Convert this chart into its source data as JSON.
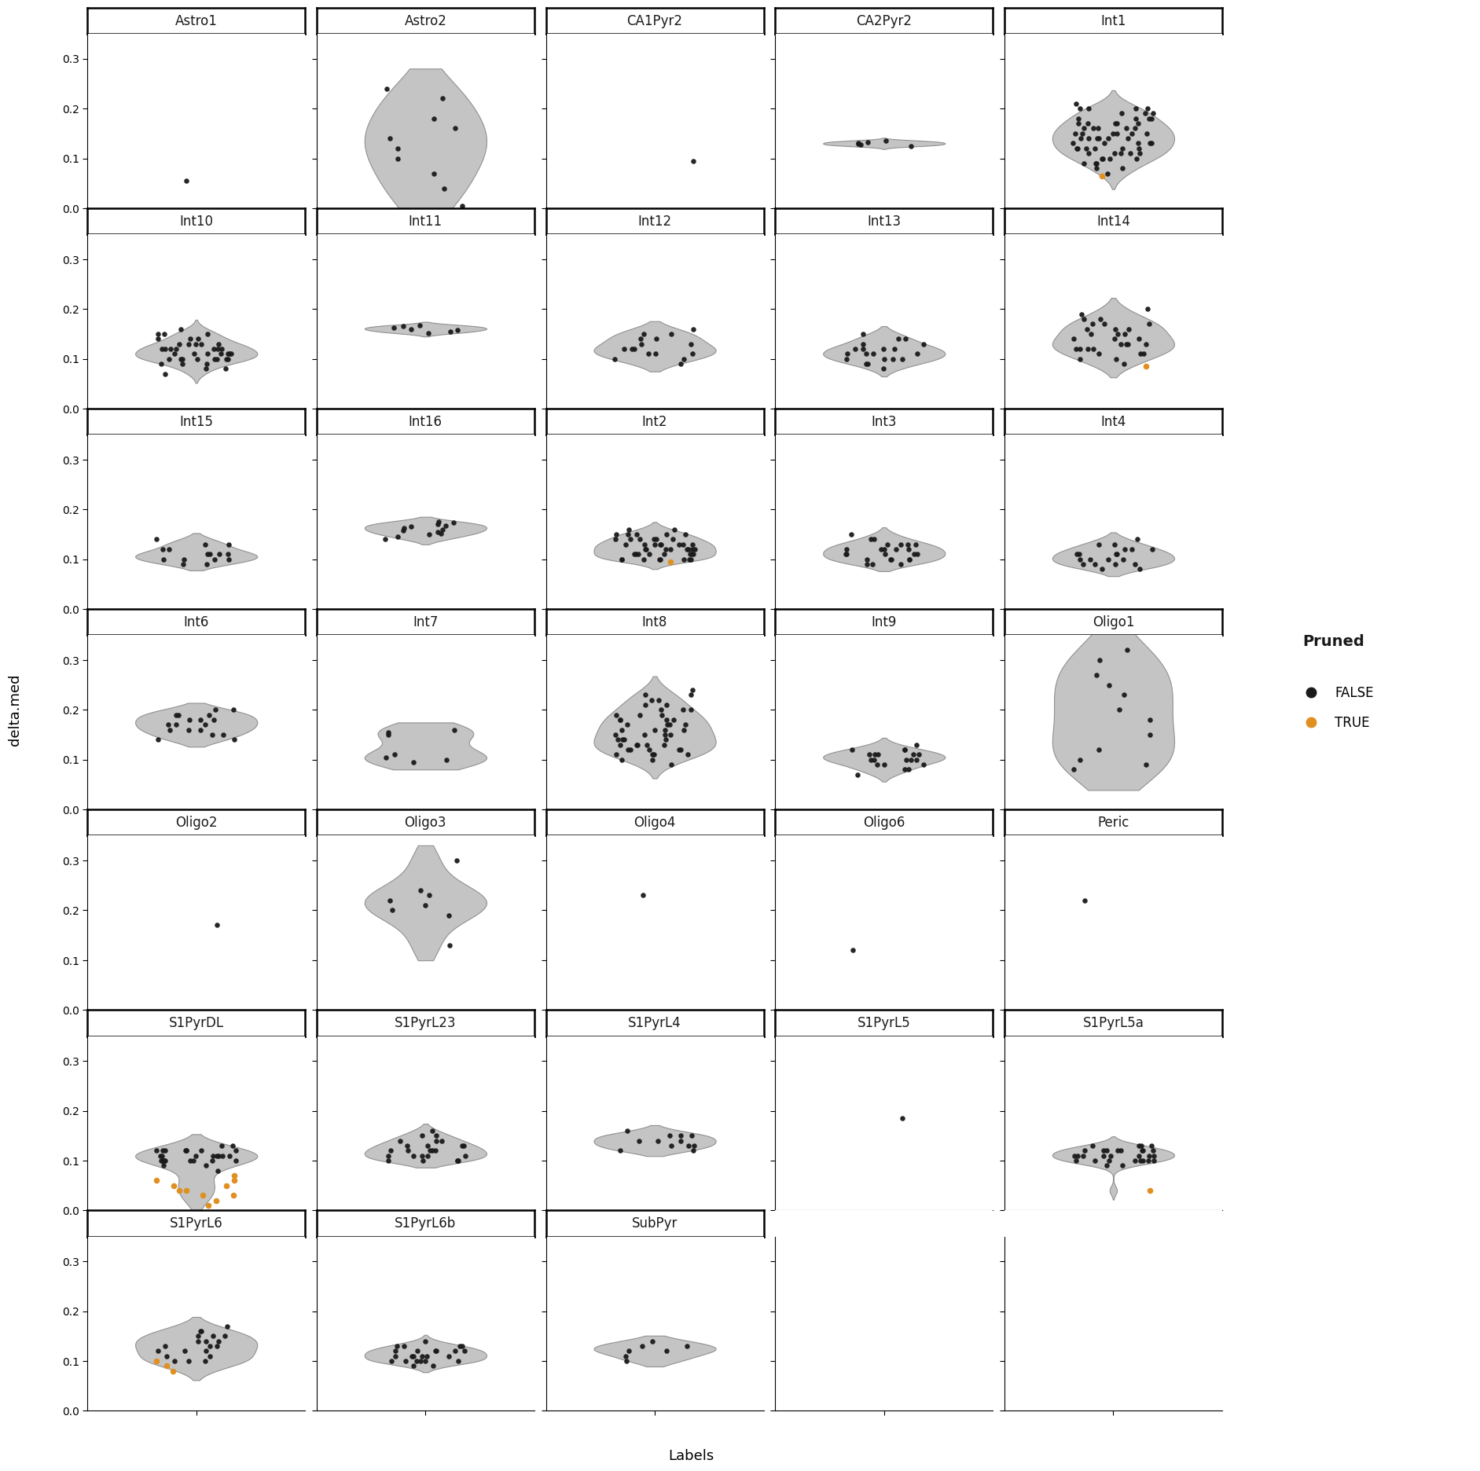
{
  "panels": [
    {
      "name": "Astro1",
      "row": 0,
      "col": 0,
      "false_vals": [
        0.055
      ],
      "true_vals": [],
      "violin": false
    },
    {
      "name": "Astro2",
      "row": 0,
      "col": 1,
      "false_vals": [
        0.005,
        0.04,
        0.07,
        0.1,
        0.12,
        0.14,
        0.16,
        0.18,
        0.22,
        0.24
      ],
      "true_vals": [],
      "violin": true
    },
    {
      "name": "CA1Pyr2",
      "row": 0,
      "col": 2,
      "false_vals": [
        0.095
      ],
      "true_vals": [],
      "violin": false
    },
    {
      "name": "CA2Pyr2",
      "row": 0,
      "col": 3,
      "false_vals": [
        0.125,
        0.127,
        0.129,
        0.131,
        0.133,
        0.135
      ],
      "true_vals": [],
      "violin": true
    },
    {
      "name": "Int1",
      "row": 0,
      "col": 4,
      "false_vals": [
        0.07,
        0.08,
        0.08,
        0.09,
        0.09,
        0.1,
        0.1,
        0.1,
        0.11,
        0.11,
        0.11,
        0.12,
        0.12,
        0.12,
        0.12,
        0.13,
        0.13,
        0.13,
        0.14,
        0.14,
        0.14,
        0.14,
        0.15,
        0.15,
        0.15,
        0.15,
        0.16,
        0.16,
        0.16,
        0.17,
        0.17,
        0.17,
        0.18,
        0.18,
        0.18,
        0.19,
        0.19,
        0.2,
        0.2,
        0.2,
        0.21,
        0.14,
        0.13,
        0.12,
        0.11,
        0.1,
        0.09,
        0.15,
        0.16,
        0.17,
        0.18,
        0.19,
        0.2,
        0.14,
        0.13,
        0.12,
        0.11,
        0.15,
        0.16,
        0.17
      ],
      "true_vals": [
        0.065
      ],
      "violin": true
    },
    {
      "name": "Int10",
      "row": 1,
      "col": 0,
      "false_vals": [
        0.07,
        0.08,
        0.08,
        0.09,
        0.09,
        0.1,
        0.1,
        0.1,
        0.11,
        0.11,
        0.11,
        0.12,
        0.12,
        0.12,
        0.13,
        0.13,
        0.13,
        0.14,
        0.14,
        0.14,
        0.15,
        0.15,
        0.15,
        0.16,
        0.1,
        0.11,
        0.12,
        0.13,
        0.1,
        0.11,
        0.12,
        0.13,
        0.1,
        0.11,
        0.12,
        0.09,
        0.1,
        0.11,
        0.12,
        0.1
      ],
      "true_vals": [],
      "violin": true
    },
    {
      "name": "Int11",
      "row": 1,
      "col": 1,
      "false_vals": [
        0.152,
        0.155,
        0.158,
        0.16,
        0.162,
        0.165,
        0.167
      ],
      "true_vals": [],
      "violin": true
    },
    {
      "name": "Int12",
      "row": 1,
      "col": 2,
      "false_vals": [
        0.09,
        0.1,
        0.1,
        0.11,
        0.11,
        0.12,
        0.12,
        0.13,
        0.13,
        0.14,
        0.14,
        0.15,
        0.15,
        0.16,
        0.11,
        0.12
      ],
      "true_vals": [],
      "violin": true
    },
    {
      "name": "Int13",
      "row": 1,
      "col": 3,
      "false_vals": [
        0.08,
        0.09,
        0.09,
        0.1,
        0.1,
        0.1,
        0.11,
        0.11,
        0.11,
        0.12,
        0.12,
        0.12,
        0.13,
        0.13,
        0.14,
        0.14,
        0.15,
        0.1,
        0.11,
        0.12
      ],
      "true_vals": [],
      "violin": true
    },
    {
      "name": "Int14",
      "row": 1,
      "col": 4,
      "false_vals": [
        0.09,
        0.1,
        0.1,
        0.11,
        0.11,
        0.12,
        0.12,
        0.13,
        0.13,
        0.14,
        0.14,
        0.15,
        0.15,
        0.16,
        0.16,
        0.17,
        0.17,
        0.18,
        0.18,
        0.19,
        0.2,
        0.11,
        0.12,
        0.13,
        0.14,
        0.15,
        0.16,
        0.17,
        0.12,
        0.13
      ],
      "true_vals": [
        0.085
      ],
      "violin": true
    },
    {
      "name": "Int15",
      "row": 2,
      "col": 0,
      "false_vals": [
        0.09,
        0.09,
        0.1,
        0.1,
        0.1,
        0.11,
        0.11,
        0.11,
        0.12,
        0.12,
        0.13,
        0.13,
        0.14,
        0.1,
        0.11
      ],
      "true_vals": [],
      "violin": true
    },
    {
      "name": "Int16",
      "row": 2,
      "col": 1,
      "false_vals": [
        0.14,
        0.145,
        0.15,
        0.152,
        0.155,
        0.158,
        0.16,
        0.163,
        0.165,
        0.168,
        0.17,
        0.173,
        0.175
      ],
      "true_vals": [],
      "violin": true
    },
    {
      "name": "Int2",
      "row": 2,
      "col": 2,
      "false_vals": [
        0.1,
        0.1,
        0.1,
        0.11,
        0.11,
        0.11,
        0.12,
        0.12,
        0.12,
        0.13,
        0.13,
        0.13,
        0.14,
        0.14,
        0.14,
        0.15,
        0.15,
        0.15,
        0.16,
        0.1,
        0.11,
        0.12,
        0.13,
        0.14,
        0.1,
        0.11,
        0.12,
        0.13,
        0.1,
        0.11,
        0.12,
        0.13,
        0.14,
        0.15,
        0.1,
        0.11,
        0.12,
        0.13,
        0.1,
        0.11,
        0.12,
        0.13,
        0.14,
        0.15,
        0.16
      ],
      "true_vals": [
        0.095
      ],
      "violin": true
    },
    {
      "name": "Int3",
      "row": 2,
      "col": 3,
      "false_vals": [
        0.09,
        0.09,
        0.1,
        0.1,
        0.1,
        0.11,
        0.11,
        0.11,
        0.12,
        0.12,
        0.12,
        0.13,
        0.13,
        0.13,
        0.14,
        0.14,
        0.15,
        0.1,
        0.11,
        0.12,
        0.13,
        0.09,
        0.1,
        0.11,
        0.12
      ],
      "true_vals": [],
      "violin": true
    },
    {
      "name": "Int4",
      "row": 2,
      "col": 4,
      "false_vals": [
        0.08,
        0.08,
        0.09,
        0.09,
        0.09,
        0.1,
        0.1,
        0.1,
        0.11,
        0.11,
        0.11,
        0.12,
        0.12,
        0.12,
        0.13,
        0.13,
        0.14,
        0.09,
        0.1,
        0.11
      ],
      "true_vals": [],
      "violin": true
    },
    {
      "name": "Int6",
      "row": 3,
      "col": 0,
      "false_vals": [
        0.14,
        0.14,
        0.15,
        0.15,
        0.16,
        0.16,
        0.17,
        0.17,
        0.18,
        0.18,
        0.19,
        0.19,
        0.2,
        0.2,
        0.16,
        0.17,
        0.18,
        0.19
      ],
      "true_vals": [],
      "violin": true
    },
    {
      "name": "Int7",
      "row": 3,
      "col": 1,
      "false_vals": [
        0.095,
        0.1,
        0.105,
        0.11,
        0.15,
        0.155,
        0.16
      ],
      "true_vals": [],
      "violin": true
    },
    {
      "name": "Int8",
      "row": 3,
      "col": 2,
      "false_vals": [
        0.09,
        0.1,
        0.1,
        0.11,
        0.11,
        0.12,
        0.12,
        0.13,
        0.13,
        0.14,
        0.14,
        0.15,
        0.15,
        0.16,
        0.16,
        0.17,
        0.17,
        0.18,
        0.18,
        0.19,
        0.19,
        0.2,
        0.2,
        0.21,
        0.21,
        0.22,
        0.22,
        0.23,
        0.23,
        0.24,
        0.11,
        0.12,
        0.13,
        0.14,
        0.15,
        0.16,
        0.17,
        0.18,
        0.19,
        0.2,
        0.11,
        0.12,
        0.13,
        0.14,
        0.15,
        0.16,
        0.17,
        0.18,
        0.12,
        0.13
      ],
      "true_vals": [],
      "violin": true
    },
    {
      "name": "Int9",
      "row": 3,
      "col": 3,
      "false_vals": [
        0.07,
        0.08,
        0.08,
        0.09,
        0.09,
        0.1,
        0.1,
        0.1,
        0.11,
        0.11,
        0.11,
        0.12,
        0.12,
        0.12,
        0.13,
        0.09,
        0.1,
        0.11,
        0.1,
        0.11
      ],
      "true_vals": [],
      "violin": true
    },
    {
      "name": "Oligo1",
      "row": 3,
      "col": 4,
      "false_vals": [
        0.08,
        0.09,
        0.1,
        0.12,
        0.15,
        0.18,
        0.2,
        0.23,
        0.25,
        0.27,
        0.3,
        0.32
      ],
      "true_vals": [],
      "violin": true
    },
    {
      "name": "Oligo2",
      "row": 4,
      "col": 0,
      "false_vals": [
        0.17
      ],
      "true_vals": [],
      "violin": false
    },
    {
      "name": "Oligo3",
      "row": 4,
      "col": 1,
      "false_vals": [
        0.13,
        0.19,
        0.2,
        0.21,
        0.22,
        0.23,
        0.24,
        0.3
      ],
      "true_vals": [],
      "violin": true
    },
    {
      "name": "Oligo4",
      "row": 4,
      "col": 2,
      "false_vals": [
        0.23
      ],
      "true_vals": [],
      "violin": false
    },
    {
      "name": "Oligo6",
      "row": 4,
      "col": 3,
      "false_vals": [
        0.12
      ],
      "true_vals": [],
      "violin": false
    },
    {
      "name": "Peric",
      "row": 4,
      "col": 4,
      "false_vals": [
        0.22
      ],
      "true_vals": [],
      "violin": false
    },
    {
      "name": "S1PyrDL",
      "row": 5,
      "col": 0,
      "false_vals": [
        0.08,
        0.09,
        0.09,
        0.1,
        0.1,
        0.1,
        0.11,
        0.11,
        0.11,
        0.12,
        0.12,
        0.12,
        0.12,
        0.13,
        0.13,
        0.1,
        0.11,
        0.12,
        0.1,
        0.11,
        0.12,
        0.1,
        0.11,
        0.1,
        0.11,
        0.12,
        0.1,
        0.11,
        0.12,
        0.1
      ],
      "true_vals": [
        0.01,
        0.02,
        0.03,
        0.03,
        0.04,
        0.04,
        0.05,
        0.05,
        0.06,
        0.06,
        0.07
      ],
      "violin": true
    },
    {
      "name": "S1PyrL23",
      "row": 5,
      "col": 1,
      "false_vals": [
        0.1,
        0.1,
        0.11,
        0.11,
        0.12,
        0.12,
        0.13,
        0.13,
        0.14,
        0.14,
        0.15,
        0.15,
        0.16,
        0.1,
        0.11,
        0.12,
        0.13,
        0.1,
        0.11,
        0.12,
        0.13,
        0.14,
        0.1,
        0.11,
        0.12
      ],
      "true_vals": [],
      "violin": true
    },
    {
      "name": "S1PyrL4",
      "row": 5,
      "col": 2,
      "false_vals": [
        0.12,
        0.12,
        0.13,
        0.13,
        0.14,
        0.14,
        0.15,
        0.15,
        0.16,
        0.13,
        0.14,
        0.15
      ],
      "true_vals": [],
      "violin": true
    },
    {
      "name": "S1PyrL5",
      "row": 5,
      "col": 3,
      "false_vals": [
        0.185
      ],
      "true_vals": [],
      "violin": false
    },
    {
      "name": "S1PyrL5a",
      "row": 5,
      "col": 4,
      "false_vals": [
        0.09,
        0.09,
        0.1,
        0.1,
        0.1,
        0.11,
        0.11,
        0.11,
        0.12,
        0.12,
        0.12,
        0.12,
        0.13,
        0.13,
        0.1,
        0.11,
        0.12,
        0.1,
        0.11,
        0.12,
        0.13,
        0.1,
        0.11,
        0.12,
        0.1,
        0.11,
        0.12,
        0.13,
        0.1,
        0.11
      ],
      "true_vals": [
        0.04
      ],
      "violin": true
    },
    {
      "name": "S1PyrL6",
      "row": 6,
      "col": 0,
      "false_vals": [
        0.1,
        0.1,
        0.11,
        0.12,
        0.12,
        0.13,
        0.13,
        0.14,
        0.14,
        0.15,
        0.15,
        0.16,
        0.16,
        0.17,
        0.1,
        0.11,
        0.12,
        0.13,
        0.14,
        0.15
      ],
      "true_vals": [
        0.08,
        0.09,
        0.1
      ],
      "violin": true
    },
    {
      "name": "S1PyrL6b",
      "row": 6,
      "col": 1,
      "false_vals": [
        0.09,
        0.09,
        0.1,
        0.1,
        0.1,
        0.11,
        0.11,
        0.11,
        0.12,
        0.12,
        0.12,
        0.13,
        0.13,
        0.13,
        0.14,
        0.1,
        0.11,
        0.12,
        0.1,
        0.11,
        0.12,
        0.13,
        0.1,
        0.11,
        0.12
      ],
      "true_vals": [],
      "violin": true
    },
    {
      "name": "SubPyr",
      "row": 6,
      "col": 2,
      "false_vals": [
        0.1,
        0.11,
        0.12,
        0.12,
        0.13,
        0.13,
        0.14
      ],
      "true_vals": [],
      "violin": true
    }
  ],
  "nrows": 7,
  "ncols": 5,
  "ylabel": "delta.med",
  "xlabel": "Labels",
  "ylim": [
    0.0,
    0.35
  ],
  "yticks": [
    0.0,
    0.1,
    0.2,
    0.3
  ],
  "ytick_labels": [
    "0.0",
    "0.1",
    "0.2",
    "0.3"
  ],
  "false_color": "#1a1a1a",
  "true_color": "#E09020",
  "violin_color": "#BEBEBE",
  "violin_edge_color": "#888888",
  "background_color": "#ffffff",
  "label_font_size": 12,
  "tick_font_size": 10,
  "axis_label_font_size": 13,
  "legend_title": "Pruned",
  "legend_false_label": "FALSE",
  "legend_true_label": "TRUE"
}
